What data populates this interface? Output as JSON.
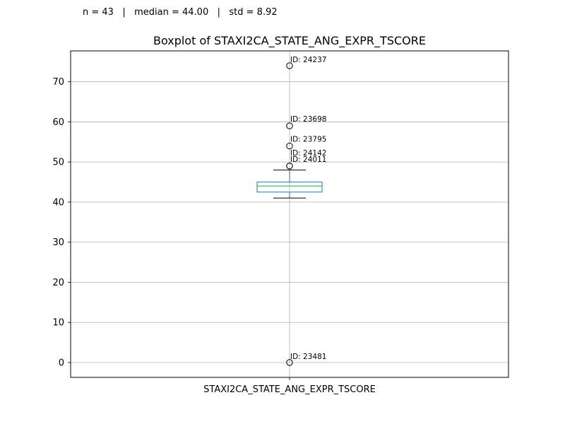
{
  "header": {
    "stats_text": "n = 43   |   median = 44.00   |   std = 8.92"
  },
  "chart_data": {
    "type": "box",
    "title": "Boxplot of STAXI2CA_STATE_ANG_EXPR_TSCORE",
    "xlabel": "",
    "ylabel": "",
    "categories": [
      "STAXI2CA_STATE_ANG_EXPR_TSCORE"
    ],
    "ylim": [
      -3.7,
      77.7
    ],
    "yticks": [
      0,
      10,
      20,
      30,
      40,
      50,
      60,
      70
    ],
    "grid": true,
    "box": {
      "q1": 42.5,
      "median": 44.0,
      "q3": 45.0,
      "whisker_low": 41.0,
      "whisker_high": 48.0
    },
    "outliers": [
      {
        "value": 74,
        "label": "ID: 24237"
      },
      {
        "value": 59,
        "label": "ID: 23698"
      },
      {
        "value": 54,
        "label": "ID: 23795"
      },
      {
        "value": 49,
        "label": "ID: 24142"
      },
      {
        "value": 49,
        "label": "ID: 24011"
      },
      {
        "value": 0,
        "label": "ID: 23481"
      }
    ],
    "colors": {
      "box": "#1f77b4",
      "median": "#2ca02c",
      "whisker": "#000000",
      "grid": "#b0b0b0",
      "outlier_edge": "#000000"
    }
  }
}
